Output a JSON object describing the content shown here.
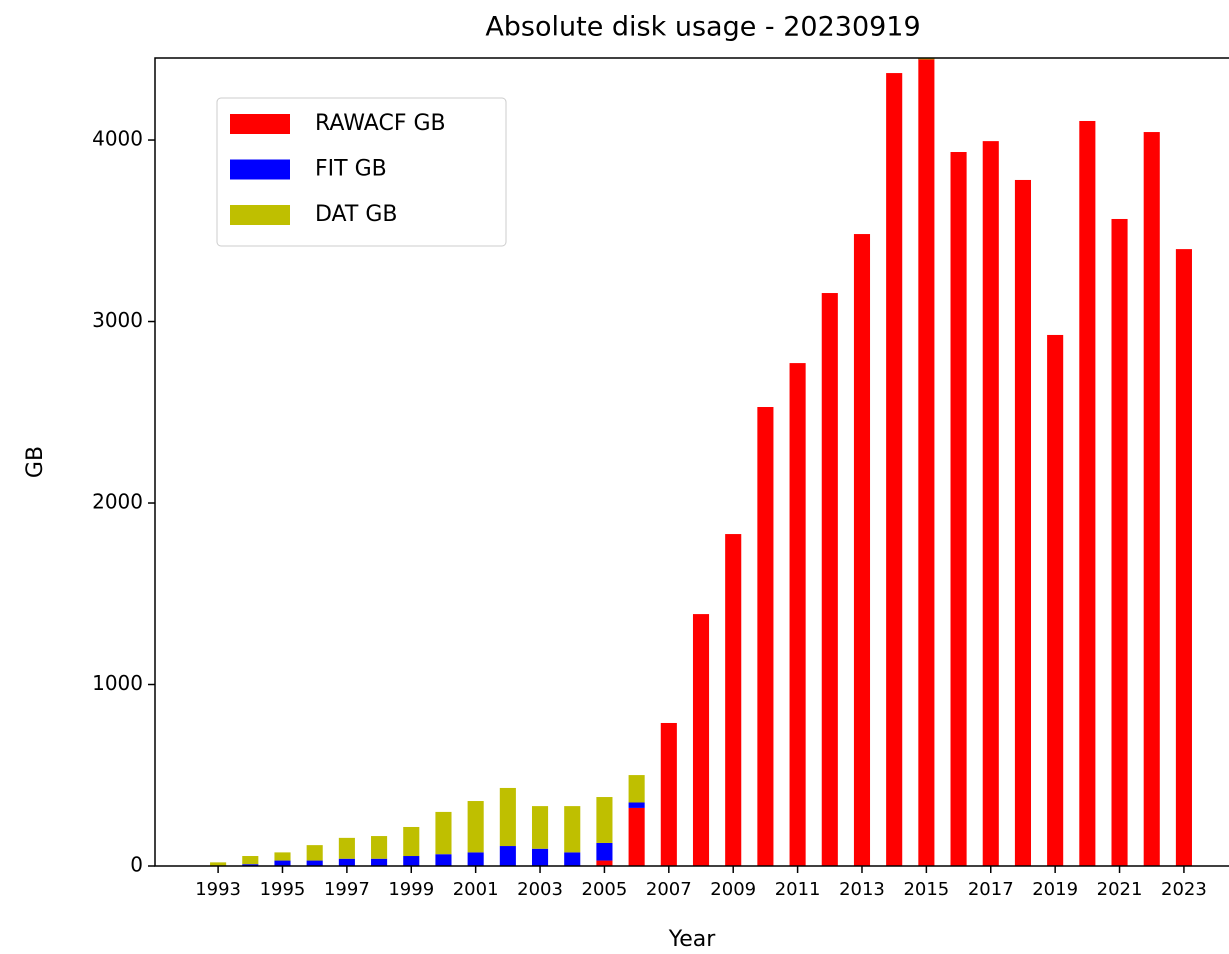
{
  "chart_data": {
    "type": "stacked_bar",
    "title": "Absolute disk usage - 20230919",
    "x_label": "Year",
    "y_label": "GB",
    "x": [
      1993,
      1994,
      1995,
      1996,
      1997,
      1998,
      1999,
      2000,
      2001,
      2002,
      2003,
      2004,
      2005,
      2006,
      2007,
      2008,
      2009,
      2010,
      2011,
      2012,
      2013,
      2014,
      2015,
      2016,
      2017,
      2018,
      2019,
      2020,
      2021,
      2022,
      2023
    ],
    "series": [
      {
        "name": "RAWACF GB",
        "color": "#ff0000",
        "values": [
          0,
          0,
          0,
          0,
          0,
          0,
          0,
          0,
          0,
          0,
          0,
          0,
          30,
          320,
          788,
          1388,
          1829,
          2529,
          2771,
          3157,
          3482,
          4369,
          4460,
          3934,
          3994,
          3780,
          2926,
          4105,
          3565,
          4044,
          3399
        ]
      },
      {
        "name": "FIT GB",
        "color": "#0000ff",
        "values": [
          2,
          10,
          30,
          30,
          40,
          40,
          55,
          65,
          75,
          110,
          95,
          75,
          97,
          30,
          0,
          0,
          0,
          0,
          0,
          0,
          0,
          0,
          0,
          0,
          0,
          0,
          0,
          0,
          0,
          0,
          0
        ]
      },
      {
        "name": "DAT GB",
        "color": "#bfbf00",
        "values": [
          18,
          45,
          45,
          85,
          115,
          125,
          160,
          233,
          283,
          320,
          235,
          255,
          253,
          151,
          0,
          0,
          0,
          0,
          0,
          0,
          0,
          0,
          0,
          0,
          0,
          0,
          0,
          0,
          0,
          0,
          0
        ]
      }
    ],
    "xlim": [
      1991.04,
      2024.4
    ],
    "xticks": [
      1993,
      1995,
      1997,
      1999,
      2001,
      2003,
      2005,
      2007,
      2009,
      2011,
      2013,
      2015,
      2017,
      2019,
      2021,
      2023
    ],
    "ylim": [
      0,
      4452
    ],
    "yticks": [
      0,
      1000,
      2000,
      3000,
      4000
    ],
    "legend": "upper left"
  }
}
